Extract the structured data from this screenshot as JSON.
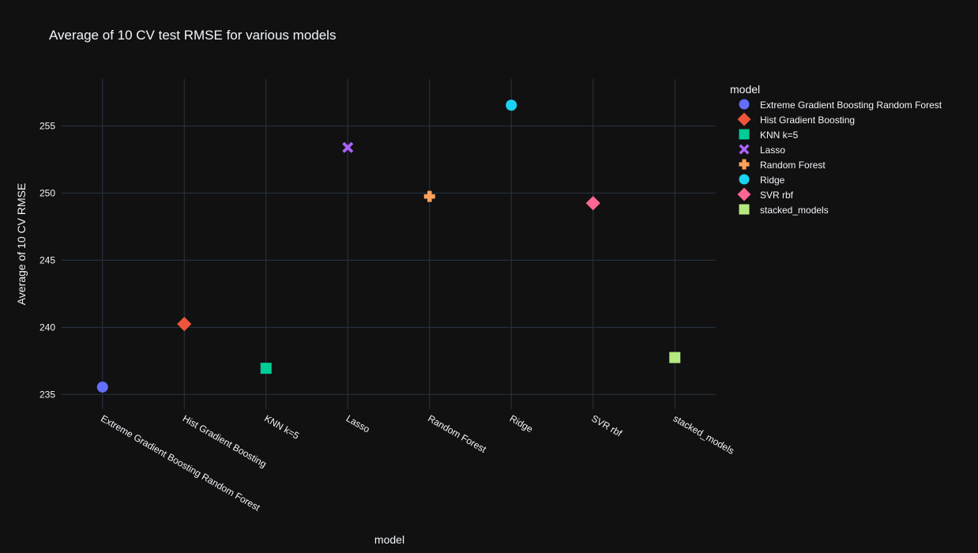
{
  "chart_data": {
    "type": "scatter",
    "title": "Average of 10 CV test RMSE for various models",
    "xlabel": "model",
    "ylabel": "Average of 10 CV RMSE",
    "categories": [
      "Extreme Gradient Boosting Random Forest",
      "Hist Gradient Boosting",
      "KNN k=5",
      "Lasso",
      "Random Forest",
      "Ridge",
      "SVR rbf",
      "stacked_models"
    ],
    "ylim": [
      233.9,
      258.5
    ],
    "yticks": [
      235,
      240,
      245,
      250,
      255
    ],
    "grid": true,
    "legend": {
      "title": "model",
      "placement": "right"
    },
    "series": [
      {
        "name": "Extreme Gradient Boosting Random Forest",
        "x": "Extreme Gradient Boosting Random Forest",
        "y": 235.55,
        "color": "#636efa",
        "symbol": "circle"
      },
      {
        "name": "Hist Gradient Boosting",
        "x": "Hist Gradient Boosting",
        "y": 240.25,
        "color": "#EF553B",
        "symbol": "diamond"
      },
      {
        "name": "KNN k=5",
        "x": "KNN k=5",
        "y": 236.95,
        "color": "#00cc96",
        "symbol": "square"
      },
      {
        "name": "Lasso",
        "x": "Lasso",
        "y": 253.4,
        "color": "#ab63fa",
        "symbol": "x"
      },
      {
        "name": "Random Forest",
        "x": "Random Forest",
        "y": 249.75,
        "color": "#FFA15A",
        "symbol": "cross"
      },
      {
        "name": "Ridge",
        "x": "Ridge",
        "y": 256.55,
        "color": "#19d3f3",
        "symbol": "circle"
      },
      {
        "name": "SVR rbf",
        "x": "SVR rbf",
        "y": 249.25,
        "color": "#FF6692",
        "symbol": "diamond"
      },
      {
        "name": "stacked_models",
        "x": "stacked_models",
        "y": 237.75,
        "color": "#B6E880",
        "symbol": "square"
      }
    ]
  }
}
